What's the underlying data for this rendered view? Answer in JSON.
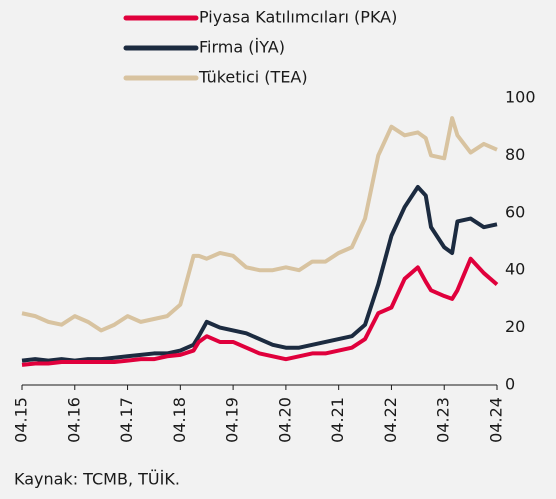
{
  "chart_data": {
    "type": "line",
    "source": "Kaynak: TCMB, TÜİK.",
    "x": [
      2015.25,
      2015.5,
      2015.75,
      2016.0,
      2016.25,
      2016.5,
      2016.75,
      2017.0,
      2017.25,
      2017.5,
      2017.75,
      2018.0,
      2018.25,
      2018.5,
      2018.6,
      2018.75,
      2019.0,
      2019.25,
      2019.5,
      2019.75,
      2020.0,
      2020.25,
      2020.5,
      2020.75,
      2021.0,
      2021.25,
      2021.5,
      2021.75,
      2022.0,
      2022.25,
      2022.5,
      2022.75,
      2022.9,
      2023.0,
      2023.25,
      2023.4,
      2023.5,
      2023.75,
      2024.0,
      2024.25
    ],
    "series": [
      {
        "name": "Piyasa Katılımcıları (PKA)",
        "color": "#e0003c",
        "values": [
          7,
          7.5,
          7.5,
          8,
          8,
          8,
          8,
          8,
          8.5,
          9,
          9,
          10,
          10.5,
          12,
          15,
          17,
          15,
          15,
          13,
          11,
          10,
          9,
          10,
          11,
          11,
          12,
          13,
          16,
          25,
          27,
          37,
          41,
          36,
          33,
          31,
          30,
          33,
          44,
          39,
          35
        ]
      },
      {
        "name": "Firma (İYA)",
        "color": "#1c2b40",
        "values": [
          8.5,
          9,
          8.5,
          9,
          8.5,
          9,
          9,
          9.5,
          10,
          10.5,
          11,
          11,
          12,
          14,
          17,
          22,
          20,
          19,
          18,
          16,
          14,
          13,
          13,
          14,
          15,
          16,
          17,
          21,
          35,
          52,
          62,
          69,
          66,
          55,
          48,
          46,
          57,
          58,
          55,
          56
        ]
      },
      {
        "name": "Tüketici (TEA)",
        "color": "#d8c3a0",
        "values": [
          25,
          24,
          22,
          21,
          24,
          22,
          19,
          21,
          24,
          22,
          23,
          24,
          28,
          45,
          45,
          44,
          46,
          45,
          41,
          40,
          40,
          41,
          40,
          43,
          43,
          46,
          48,
          58,
          80,
          90,
          87,
          88,
          86,
          80,
          79,
          93,
          87,
          81,
          84,
          82
        ]
      }
    ],
    "xlim": [
      2015.25,
      2024.25
    ],
    "xticks": [
      {
        "value": 2015.25,
        "label": "04.15"
      },
      {
        "value": 2016.25,
        "label": "04.16"
      },
      {
        "value": 2017.25,
        "label": "04.17"
      },
      {
        "value": 2018.25,
        "label": "04.18"
      },
      {
        "value": 2019.25,
        "label": "04.19"
      },
      {
        "value": 2020.25,
        "label": "04.20"
      },
      {
        "value": 2021.25,
        "label": "04.21"
      },
      {
        "value": 2022.25,
        "label": "04.22"
      },
      {
        "value": 2023.25,
        "label": "04.23"
      },
      {
        "value": 2024.25,
        "label": "04.24"
      }
    ],
    "ylim": [
      0,
      100
    ],
    "yticks": [
      0,
      20,
      40,
      60,
      80,
      100
    ],
    "grid": false
  }
}
